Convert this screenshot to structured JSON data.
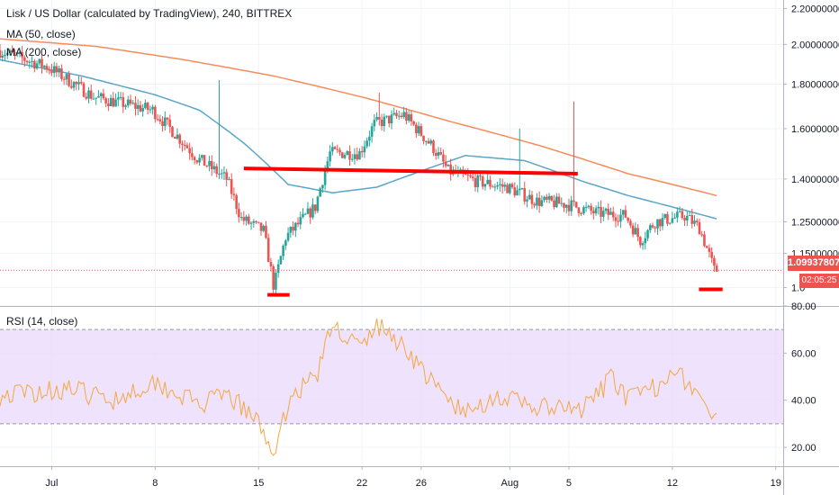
{
  "header": {
    "symbol": "Lisk / US Dollar (calculated by TradingView), 240, BITTREX",
    "ma50_label": "MA (50, close)",
    "ma200_label": "MA (200, close)",
    "rsi_label": "RSI (14, close)"
  },
  "colors": {
    "up": "#26a69a",
    "down": "#ef5350",
    "ma50": "#5aa5c8",
    "ma200": "#f58c5a",
    "rsi": "#f5a742",
    "rsi_band": "#e9d8fb",
    "annotation": "#ff0000"
  },
  "last_price": {
    "value": "1.09937807",
    "countdown": "02:05:25"
  },
  "chart_data": [
    {
      "type": "candlestick",
      "panel": "price",
      "y_ticks": [
        "2.20000000",
        "2.00000000",
        "1.80000000",
        "1.60000000",
        "1.40000000",
        "1.25000000",
        "1.15000000",
        "1.0"
      ],
      "y_tick_values": [
        2.2,
        2.0,
        1.8,
        1.6,
        1.4,
        1.25,
        1.15,
        1.05
      ],
      "x_ticks": [
        "Jul",
        "8",
        "15",
        "22",
        "26",
        "Aug",
        "5",
        "12",
        "19"
      ],
      "x_tick_days": [
        1,
        8,
        15,
        22,
        26,
        32,
        36,
        43,
        50
      ],
      "x_range_days": [
        -2.5,
        50.5
      ],
      "y_range": [
        1.0,
        2.25
      ],
      "price_anchors": [
        {
          "day": -2.5,
          "price": 1.97
        },
        {
          "day": 1,
          "price": 1.88
        },
        {
          "day": 4,
          "price": 1.74
        },
        {
          "day": 8,
          "price": 1.68
        },
        {
          "day": 11,
          "price": 1.48
        },
        {
          "day": 13,
          "price": 1.4
        },
        {
          "day": 14,
          "price": 1.26
        },
        {
          "day": 15.5,
          "price": 1.22
        },
        {
          "day": 16.2,
          "price": 1.05
        },
        {
          "day": 17,
          "price": 1.2
        },
        {
          "day": 19,
          "price": 1.3
        },
        {
          "day": 20,
          "price": 1.5
        },
        {
          "day": 22,
          "price": 1.5
        },
        {
          "day": 23,
          "price": 1.62
        },
        {
          "day": 25,
          "price": 1.66
        },
        {
          "day": 27,
          "price": 1.52
        },
        {
          "day": 28,
          "price": 1.43
        },
        {
          "day": 30,
          "price": 1.39
        },
        {
          "day": 32,
          "price": 1.37
        },
        {
          "day": 34,
          "price": 1.32
        },
        {
          "day": 36,
          "price": 1.31
        },
        {
          "day": 38,
          "price": 1.28
        },
        {
          "day": 40,
          "price": 1.27
        },
        {
          "day": 41,
          "price": 1.19
        },
        {
          "day": 42,
          "price": 1.25
        },
        {
          "day": 44,
          "price": 1.27
        },
        {
          "day": 45,
          "price": 1.23
        },
        {
          "day": 46,
          "price": 1.1
        }
      ],
      "ma50_points": [
        {
          "day": -2.5,
          "price": 1.92
        },
        {
          "day": 3,
          "price": 1.84
        },
        {
          "day": 8,
          "price": 1.75
        },
        {
          "day": 11,
          "price": 1.68
        },
        {
          "day": 14,
          "price": 1.54
        },
        {
          "day": 17,
          "price": 1.38
        },
        {
          "day": 20,
          "price": 1.35
        },
        {
          "day": 23,
          "price": 1.37
        },
        {
          "day": 26,
          "price": 1.43
        },
        {
          "day": 29,
          "price": 1.49
        },
        {
          "day": 33,
          "price": 1.47
        },
        {
          "day": 37,
          "price": 1.39
        },
        {
          "day": 40,
          "price": 1.34
        },
        {
          "day": 43,
          "price": 1.3
        },
        {
          "day": 46,
          "price": 1.26
        }
      ],
      "ma200_points": [
        {
          "day": -2.5,
          "price": 2.03
        },
        {
          "day": 4,
          "price": 1.99
        },
        {
          "day": 10,
          "price": 1.92
        },
        {
          "day": 16,
          "price": 1.84
        },
        {
          "day": 22,
          "price": 1.74
        },
        {
          "day": 28,
          "price": 1.63
        },
        {
          "day": 34,
          "price": 1.53
        },
        {
          "day": 40,
          "price": 1.42
        },
        {
          "day": 46,
          "price": 1.34
        }
      ],
      "spikes": [
        {
          "day": 12.3,
          "high": 1.82
        },
        {
          "day": 23.2,
          "high": 1.76
        },
        {
          "day": 32.6,
          "high": 1.6
        },
        {
          "day": 36.3,
          "high": 1.72
        }
      ],
      "annotations": [
        {
          "kind": "line",
          "from": {
            "day": 14,
            "price": 1.44
          },
          "to": {
            "day": 36.6,
            "price": 1.42
          }
        },
        {
          "kind": "line",
          "from": {
            "day": 15.6,
            "price": 1.03
          },
          "to": {
            "day": 17.1,
            "price": 1.03
          }
        },
        {
          "kind": "line",
          "from": {
            "day": 44.8,
            "price": 1.045
          },
          "to": {
            "day": 46.4,
            "price": 1.045
          }
        }
      ],
      "last_price": 1.09937807
    },
    {
      "type": "line",
      "panel": "rsi",
      "series_name": "RSI (14, close)",
      "y_ticks": [
        "80.00",
        "60.00",
        "40.00",
        "20.00"
      ],
      "y_tick_values": [
        80,
        60,
        40,
        20
      ],
      "y_range": [
        12,
        80
      ],
      "band": [
        30,
        70
      ],
      "anchors": [
        {
          "day": -2.5,
          "value": 42
        },
        {
          "day": 2,
          "value": 45
        },
        {
          "day": 5,
          "value": 40
        },
        {
          "day": 8,
          "value": 48
        },
        {
          "day": 11,
          "value": 38
        },
        {
          "day": 13,
          "value": 42
        },
        {
          "day": 15,
          "value": 30
        },
        {
          "day": 16.2,
          "value": 17
        },
        {
          "day": 17,
          "value": 40
        },
        {
          "day": 19,
          "value": 52
        },
        {
          "day": 20,
          "value": 72
        },
        {
          "day": 22,
          "value": 62
        },
        {
          "day": 23,
          "value": 72
        },
        {
          "day": 25,
          "value": 62
        },
        {
          "day": 27,
          "value": 45
        },
        {
          "day": 29,
          "value": 34
        },
        {
          "day": 31,
          "value": 42
        },
        {
          "day": 33,
          "value": 38
        },
        {
          "day": 35,
          "value": 36
        },
        {
          "day": 37,
          "value": 36
        },
        {
          "day": 39,
          "value": 50
        },
        {
          "day": 40,
          "value": 40
        },
        {
          "day": 42,
          "value": 46
        },
        {
          "day": 43,
          "value": 55
        },
        {
          "day": 45,
          "value": 40
        },
        {
          "day": 46,
          "value": 30
        }
      ]
    }
  ]
}
